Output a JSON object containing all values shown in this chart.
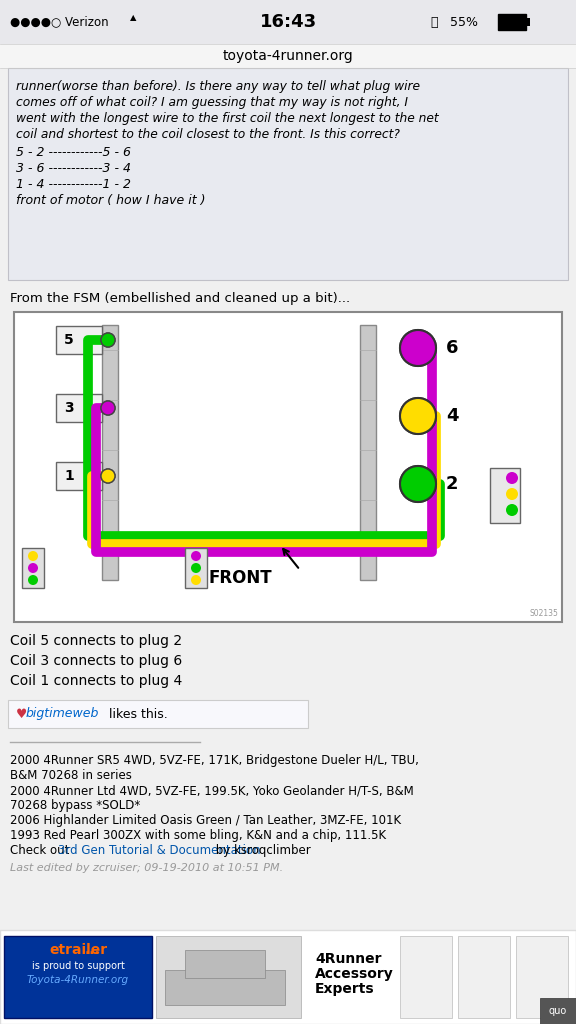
{
  "title": "toyota-4runner.org",
  "time": "16:43",
  "battery": "55%",
  "signal_text": "●●●●○ Verizon",
  "italic_lines": [
    "runner(worse than before). Is there any way to tell what plug wire",
    "comes off of what coil? I am guessing that my way is not right, I",
    "went with the longest wire to the first coil the next longest to the net",
    "coil and shortest to the coil closest to the front. Is this correct?"
  ],
  "coil_lines": [
    "5 - 2 ------------5 - 6",
    "3 - 6 ------------3 - 4",
    "1 - 4 ------------1 - 2",
    "front of motor ( how I have it )"
  ],
  "fsm_text": "From the FSM (embellished and cleaned up a bit)...",
  "coil_info": [
    "Coil 5 connects to plug 2",
    "Coil 3 connects to plug 6",
    "Coil 1 connects to plug 4"
  ],
  "likes_text": " bigtimeweb likes this.",
  "footer_lines": [
    "2000 4Runner SR5 4WD, 5VZ-FE, 171K, Bridgestone Dueler H/L, TBU,",
    "B&M 70268 in series",
    "2000 4Runner Ltd 4WD, 5VZ-FE, 199.5K, Yoko Geolander H/T-S, B&M",
    "70268 bypass *SOLD*",
    "2006 Highlander Limited Oasis Green / Tan Leather, 3MZ-FE, 101K",
    "1993 Red Pearl 300ZX with some bling, K&N and a chip, 111.5K",
    "Check out |3rd Gen Tutorial & Documentation| by ksroqclimber"
  ],
  "last_edited": "Last edited by zcruiser; 09-19-2010 at 10:51 PM.",
  "bg_color": "#f0f0f0",
  "post_bg": "#e8eaf0",
  "white": "#ffffff",
  "diagram_bg": "#ffffff",
  "GREEN": "#00cc00",
  "YELLOW": "#ffdd00",
  "MAGENTA": "#cc00cc",
  "GRAY_WALL": "#c8c8c8",
  "ad_blue": "#003399",
  "ad_orange": "#ff6600"
}
